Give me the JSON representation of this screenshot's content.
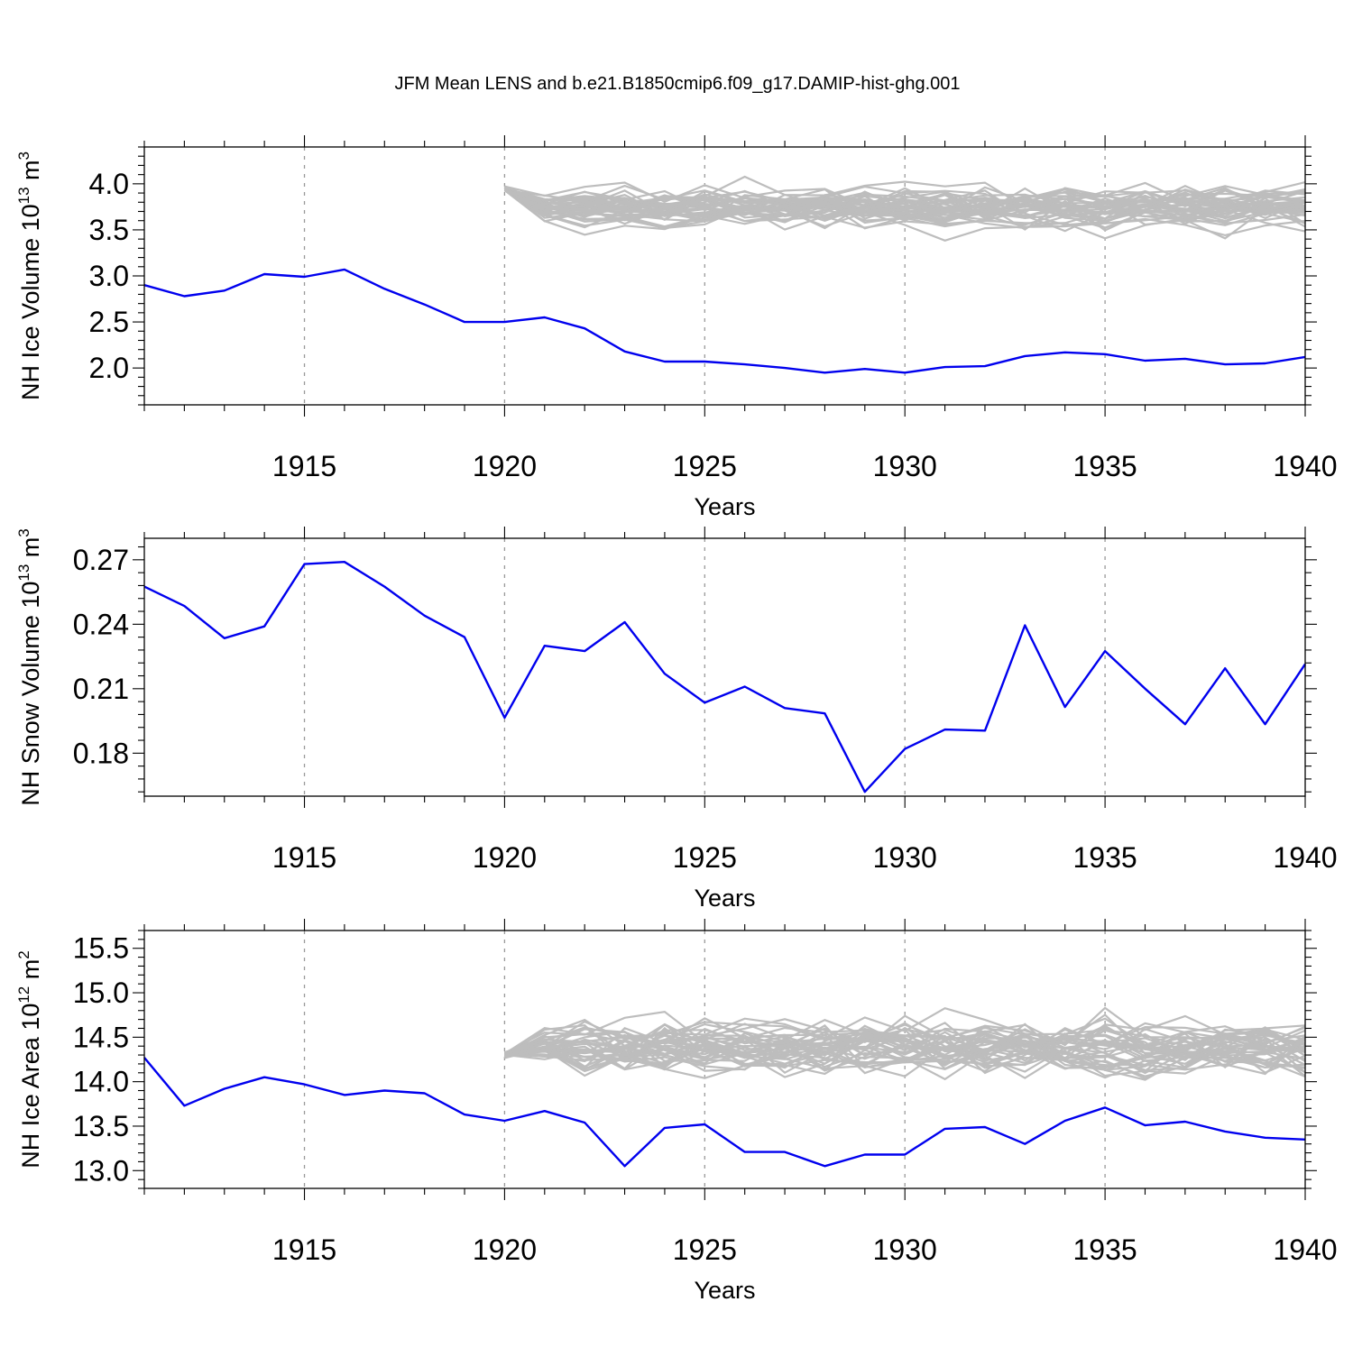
{
  "figure": {
    "title": "JFM Mean LENS and b.e21.B1850cmip6.f09_g17.DAMIP-hist-ghg.001"
  },
  "colors": {
    "main_line": "#0000ee",
    "ensemble": "#bdbdbd",
    "frame": "#000000",
    "grid": "#999999"
  },
  "chart_data": [
    {
      "type": "line",
      "id": "ice-volume",
      "title": "",
      "xlabel": "Years",
      "ylabel": "NH Ice Volume 10",
      "ylabel_exp": "13",
      "ylabel_unit": " m",
      "ylabel_unit_exp": "3",
      "xlim": [
        1911,
        1940
      ],
      "ylim": [
        1.6,
        4.4
      ],
      "xticks": [
        1915,
        1920,
        1925,
        1930,
        1935,
        1940
      ],
      "xtick_labels": [
        "1915",
        "1920",
        "1925",
        "1930",
        "1935",
        "1940"
      ],
      "yticks": [
        2.0,
        2.5,
        3.0,
        3.5,
        4.0
      ],
      "ytick_labels": [
        "2.0",
        "2.5",
        "3.0",
        "3.5",
        "4.0"
      ],
      "x": [
        1911,
        1912,
        1913,
        1914,
        1915,
        1916,
        1917,
        1918,
        1919,
        1920,
        1921,
        1922,
        1923,
        1924,
        1925,
        1926,
        1927,
        1928,
        1929,
        1930,
        1931,
        1932,
        1933,
        1934,
        1935,
        1936,
        1937,
        1938,
        1939,
        1940
      ],
      "series": [
        {
          "name": "b.e21.B1850cmip6.f09_g17.DAMIP-hist-ghg.001",
          "values": [
            2.9,
            2.78,
            2.84,
            3.02,
            2.99,
            3.07,
            2.86,
            2.69,
            2.5,
            2.5,
            2.55,
            2.43,
            2.18,
            2.07,
            2.07,
            2.04,
            2.0,
            1.95,
            1.99,
            1.95,
            2.01,
            2.02,
            2.13,
            2.17,
            2.15,
            2.08,
            2.1,
            2.04,
            2.05,
            2.12
          ]
        }
      ],
      "ensemble": {
        "name": "LENS members",
        "x_start": 1920,
        "x_end": 1940,
        "start_value": 3.95,
        "center": 3.75,
        "spread": 0.18,
        "members": 40
      }
    },
    {
      "type": "line",
      "id": "snow-volume",
      "title": "",
      "xlabel": "Years",
      "ylabel": "NH Snow Volume 10",
      "ylabel_exp": "13",
      "ylabel_unit": " m",
      "ylabel_unit_exp": "3",
      "xlim": [
        1911,
        1940
      ],
      "ylim": [
        0.16,
        0.28
      ],
      "xticks": [
        1915,
        1920,
        1925,
        1930,
        1935,
        1940
      ],
      "xtick_labels": [
        "1915",
        "1920",
        "1925",
        "1930",
        "1935",
        "1940"
      ],
      "yticks": [
        0.18,
        0.21,
        0.24,
        0.27
      ],
      "ytick_labels": [
        "0.18",
        "0.21",
        "0.24",
        "0.27"
      ],
      "x": [
        1911,
        1912,
        1913,
        1914,
        1915,
        1916,
        1917,
        1918,
        1919,
        1920,
        1921,
        1922,
        1923,
        1924,
        1925,
        1926,
        1927,
        1928,
        1929,
        1930,
        1931,
        1932,
        1933,
        1934,
        1935,
        1936,
        1937,
        1938,
        1939,
        1940
      ],
      "series": [
        {
          "name": "b.e21.B1850cmip6.f09_g17.DAMIP-hist-ghg.001",
          "values": [
            0.2575,
            0.2485,
            0.2335,
            0.239,
            0.268,
            0.269,
            0.2575,
            0.244,
            0.234,
            0.1965,
            0.23,
            0.2275,
            0.241,
            0.217,
            0.2035,
            0.211,
            0.201,
            0.1985,
            0.162,
            0.182,
            0.191,
            0.1905,
            0.2395,
            0.2015,
            0.2275,
            0.21,
            0.1935,
            0.2195,
            0.1935,
            0.2215
          ]
        }
      ]
    },
    {
      "type": "line",
      "id": "ice-area",
      "title": "",
      "xlabel": "Years",
      "ylabel": "NH Ice Area 10",
      "ylabel_exp": "12",
      "ylabel_unit": " m",
      "ylabel_unit_exp": "2",
      "xlim": [
        1911,
        1940
      ],
      "ylim": [
        12.8,
        15.7
      ],
      "xticks": [
        1915,
        1920,
        1925,
        1930,
        1935,
        1940
      ],
      "xtick_labels": [
        "1915",
        "1920",
        "1925",
        "1930",
        "1935",
        "1940"
      ],
      "yticks": [
        13.0,
        13.5,
        14.0,
        14.5,
        15.0,
        15.5
      ],
      "ytick_labels": [
        "13.0",
        "13.5",
        "14.0",
        "14.5",
        "15.0",
        "15.5"
      ],
      "x": [
        1911,
        1912,
        1913,
        1914,
        1915,
        1916,
        1917,
        1918,
        1919,
        1920,
        1921,
        1922,
        1923,
        1924,
        1925,
        1926,
        1927,
        1928,
        1929,
        1930,
        1931,
        1932,
        1933,
        1934,
        1935,
        1936,
        1937,
        1938,
        1939,
        1940
      ],
      "series": [
        {
          "name": "b.e21.B1850cmip6.f09_g17.DAMIP-hist-ghg.001",
          "values": [
            14.27,
            13.73,
            13.92,
            14.05,
            13.97,
            13.85,
            13.9,
            13.87,
            13.63,
            13.56,
            13.67,
            13.54,
            13.05,
            13.48,
            13.52,
            13.21,
            13.21,
            13.05,
            13.18,
            13.18,
            13.47,
            13.49,
            13.3,
            13.56,
            13.71,
            13.51,
            13.55,
            13.44,
            13.37,
            13.35
          ]
        }
      ],
      "ensemble": {
        "name": "LENS members",
        "x_start": 1920,
        "x_end": 1940,
        "start_value": 14.3,
        "center": 14.38,
        "spread": 0.27,
        "members": 40
      }
    }
  ]
}
